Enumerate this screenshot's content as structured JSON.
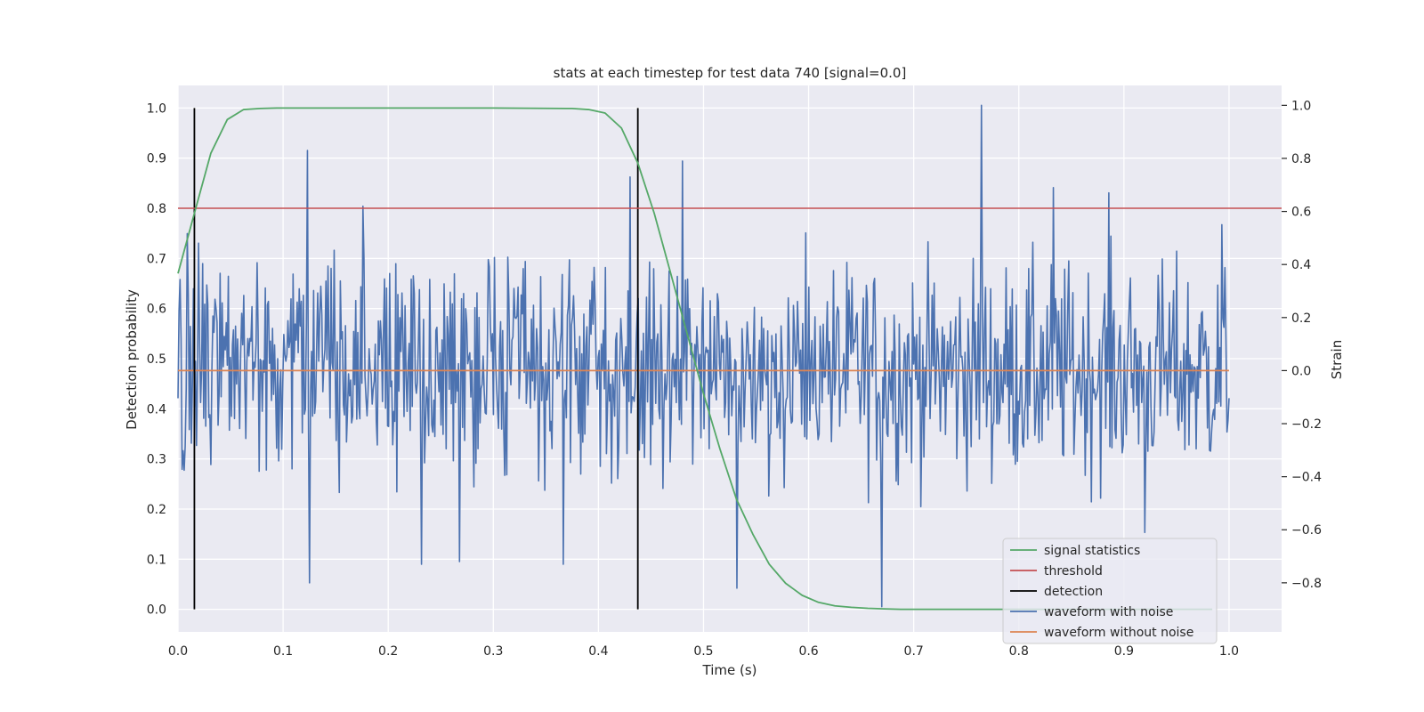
{
  "chart_data": {
    "type": "line",
    "title": "stats at each timestep for test data 740 [signal=0.0]",
    "xlabel": "Time (s)",
    "ylabel": "Detection probability",
    "y2label": "Strain",
    "xlim": [
      0.0,
      1.05
    ],
    "ylim": [
      -0.045,
      1.045
    ],
    "y2lim": [
      -0.985,
      1.075
    ],
    "x_ticks": [
      0.0,
      0.1,
      0.2,
      0.3,
      0.4,
      0.5,
      0.6,
      0.7,
      0.8,
      0.9,
      1.0
    ],
    "x_tick_labels": [
      "0.0",
      "0.1",
      "0.2",
      "0.3",
      "0.4",
      "0.5",
      "0.6",
      "0.7",
      "0.8",
      "0.9",
      "1.0"
    ],
    "y_ticks": [
      0.0,
      0.1,
      0.2,
      0.3,
      0.4,
      0.5,
      0.6,
      0.7,
      0.8,
      0.9,
      1.0
    ],
    "y_tick_labels": [
      "0.0",
      "0.1",
      "0.2",
      "0.3",
      "0.4",
      "0.5",
      "0.6",
      "0.7",
      "0.8",
      "0.9",
      "1.0"
    ],
    "y2_ticks": [
      -0.8,
      -0.6,
      -0.4,
      -0.2,
      0.0,
      0.2,
      0.4,
      0.6,
      0.8,
      1.0
    ],
    "y2_tick_labels": [
      "−0.8",
      "−0.6",
      "−0.4",
      "−0.2",
      "0.0",
      "0.2",
      "0.4",
      "0.6",
      "0.8",
      "1.0"
    ],
    "grid": true,
    "legend_position": "bottom-right",
    "series": [
      {
        "name": "signal statistics",
        "axis": "left",
        "color": "#55a868",
        "x": [
          0.0,
          0.0156,
          0.0313,
          0.0469,
          0.0625,
          0.0781,
          0.0938,
          0.1094,
          0.125,
          0.2,
          0.3,
          0.375,
          0.3906,
          0.4063,
          0.4219,
          0.4375,
          0.4531,
          0.4688,
          0.4844,
          0.5,
          0.5156,
          0.5313,
          0.5469,
          0.5625,
          0.5781,
          0.5938,
          0.6094,
          0.625,
          0.6406,
          0.6563,
          0.6719,
          0.6875,
          0.7,
          0.8,
          0.9,
          0.984
        ],
        "y": [
          0.67,
          0.79,
          0.91,
          0.977,
          0.997,
          0.999,
          1.0,
          1.0,
          1.0,
          1.0,
          1.0,
          0.999,
          0.997,
          0.99,
          0.96,
          0.89,
          0.79,
          0.67,
          0.55,
          0.43,
          0.32,
          0.22,
          0.15,
          0.09,
          0.052,
          0.028,
          0.014,
          0.007,
          0.004,
          0.002,
          0.001,
          0.0,
          0.0,
          0.0,
          0.0,
          0.0
        ]
      },
      {
        "name": "threshold",
        "axis": "left",
        "color": "#c44e52",
        "x": [
          0.0,
          1.05
        ],
        "y": [
          0.8,
          0.8
        ]
      },
      {
        "name": "detection",
        "axis": "left",
        "color": "#000000",
        "x": [
          0.0156,
          0.4375
        ],
        "y_range": [
          0.0,
          1.0
        ]
      },
      {
        "name": "waveform with noise",
        "axis": "right",
        "color": "#4c72b0",
        "x_range": [
          0.0,
          1.0
        ],
        "amplitude_std": 0.2,
        "peaks": [
          {
            "x": 0.123,
            "y": 0.83
          },
          {
            "x": 0.125,
            "y": -0.8
          },
          {
            "x": 0.176,
            "y": 0.62
          },
          {
            "x": 0.232,
            "y": -0.73
          },
          {
            "x": 0.268,
            "y": -0.72
          },
          {
            "x": 0.367,
            "y": -0.73
          },
          {
            "x": 0.43,
            "y": 0.73
          },
          {
            "x": 0.48,
            "y": 0.79
          },
          {
            "x": 0.532,
            "y": 0.69
          },
          {
            "x": 0.532,
            "y": -0.82
          },
          {
            "x": 0.67,
            "y": -0.89
          },
          {
            "x": 0.765,
            "y": 1.0
          },
          {
            "x": 0.833,
            "y": 0.69
          },
          {
            "x": 0.886,
            "y": 0.67
          },
          {
            "x": 0.92,
            "y": -0.61
          },
          {
            "x": 0.993,
            "y": 0.55
          }
        ]
      },
      {
        "name": "waveform without noise",
        "axis": "right",
        "color": "#dd8452",
        "x": [
          0.0,
          1.0
        ],
        "y": [
          0.0,
          0.0
        ]
      }
    ]
  }
}
